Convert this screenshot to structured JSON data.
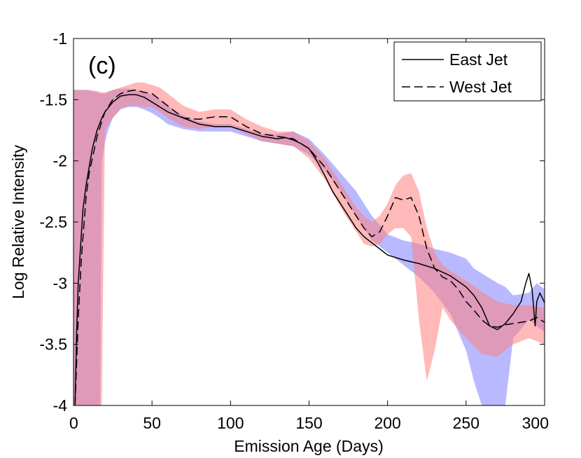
{
  "chart_data": {
    "type": "line",
    "title": "",
    "panel_label": "(c)",
    "xlabel": "Emission Age (Days)",
    "ylabel": "Log Relative Intensity",
    "xlim": [
      0,
      300
    ],
    "ylim": [
      -4,
      -1
    ],
    "grid": false,
    "legend_position": "top-right",
    "x_ticks": [
      0,
      50,
      100,
      150,
      200,
      250,
      300
    ],
    "x_tick_labels": [
      "0",
      "50",
      "100",
      "150",
      "200",
      "250",
      "300"
    ],
    "y_ticks": [
      -1,
      -1.5,
      -2,
      -2.5,
      -3,
      -3.5,
      -4
    ],
    "y_tick_labels": [
      "-1",
      "-1.5",
      "-2",
      "-2.5",
      "-3",
      "-3.5",
      "-4"
    ],
    "series": [
      {
        "name": "East Jet",
        "style": "solid",
        "color": "#000000",
        "x": [
          1,
          2,
          3,
          4,
          5,
          6,
          8,
          10,
          12,
          15,
          18,
          20,
          25,
          30,
          35,
          40,
          45,
          50,
          55,
          60,
          70,
          80,
          90,
          100,
          110,
          120,
          130,
          135,
          140,
          145,
          150,
          155,
          160,
          165,
          170,
          175,
          180,
          185,
          190,
          195,
          200,
          210,
          220,
          230,
          240,
          250,
          255,
          260,
          265,
          270,
          275,
          280,
          285,
          288,
          290,
          292,
          294,
          295,
          297,
          300
        ],
        "y": [
          -4.0,
          -3.4,
          -3.0,
          -2.8,
          -2.6,
          -2.4,
          -2.2,
          -2.05,
          -1.9,
          -1.75,
          -1.65,
          -1.6,
          -1.52,
          -1.47,
          -1.46,
          -1.46,
          -1.48,
          -1.52,
          -1.56,
          -1.6,
          -1.65,
          -1.7,
          -1.72,
          -1.72,
          -1.76,
          -1.8,
          -1.82,
          -1.81,
          -1.83,
          -1.86,
          -1.9,
          -2.0,
          -2.12,
          -2.25,
          -2.35,
          -2.45,
          -2.55,
          -2.62,
          -2.67,
          -2.72,
          -2.77,
          -2.81,
          -2.84,
          -2.88,
          -2.94,
          -3.03,
          -3.1,
          -3.2,
          -3.35,
          -3.38,
          -3.33,
          -3.25,
          -3.15,
          -3.0,
          -2.92,
          -3.05,
          -3.35,
          -3.15,
          -3.08,
          -3.16
        ]
      },
      {
        "name": "West Jet",
        "style": "dashed",
        "color": "#000000",
        "x": [
          1,
          3,
          5,
          8,
          10,
          15,
          20,
          25,
          30,
          35,
          40,
          45,
          50,
          55,
          60,
          70,
          80,
          90,
          100,
          110,
          120,
          130,
          140,
          150,
          160,
          170,
          180,
          185,
          190,
          195,
          200,
          205,
          210,
          215,
          220,
          225,
          230,
          235,
          240,
          245,
          250,
          255,
          260,
          265,
          270,
          275,
          280,
          290,
          295,
          300
        ],
        "y": [
          -4.0,
          -3.3,
          -2.8,
          -2.3,
          -2.1,
          -1.8,
          -1.6,
          -1.5,
          -1.45,
          -1.43,
          -1.42,
          -1.44,
          -1.45,
          -1.5,
          -1.55,
          -1.65,
          -1.66,
          -1.64,
          -1.64,
          -1.72,
          -1.78,
          -1.8,
          -1.82,
          -1.9,
          -2.05,
          -2.25,
          -2.45,
          -2.55,
          -2.62,
          -2.58,
          -2.45,
          -2.3,
          -2.32,
          -2.3,
          -2.45,
          -2.72,
          -2.88,
          -2.95,
          -2.98,
          -3.05,
          -3.15,
          -3.22,
          -3.3,
          -3.35,
          -3.36,
          -3.34,
          -3.33,
          -3.31,
          -3.28,
          -3.32
        ]
      }
    ],
    "bands": [
      {
        "name": "East Jet uncertainty",
        "color": "#8080ff",
        "x": [
          0,
          2,
          5,
          8,
          12,
          15,
          17,
          18,
          20,
          22,
          25,
          30,
          35,
          40,
          45,
          50,
          55,
          60,
          70,
          80,
          90,
          100,
          110,
          120,
          130,
          140,
          150,
          160,
          170,
          180,
          190,
          200,
          210,
          220,
          230,
          240,
          250,
          255,
          260,
          265,
          270,
          275,
          280,
          290,
          295,
          300
        ],
        "upper": [
          -1.42,
          -1.42,
          -1.42,
          -1.42,
          -1.43,
          -1.44,
          -1.45,
          -1.45,
          -1.45,
          -1.44,
          -1.42,
          -1.41,
          -1.41,
          -1.42,
          -1.44,
          -1.46,
          -1.5,
          -1.55,
          -1.63,
          -1.68,
          -1.7,
          -1.7,
          -1.74,
          -1.78,
          -1.78,
          -1.76,
          -1.82,
          -1.95,
          -2.1,
          -2.25,
          -2.45,
          -2.6,
          -2.65,
          -2.68,
          -2.72,
          -2.75,
          -2.8,
          -2.88,
          -2.92,
          -2.96,
          -3.0,
          -3.03,
          -3.1,
          -3.08,
          -3.0,
          -3.05
        ],
        "lower": [
          -4.0,
          -4.0,
          -4.0,
          -4.0,
          -4.0,
          -4.0,
          -4.0,
          -2.0,
          -1.85,
          -1.75,
          -1.65,
          -1.58,
          -1.56,
          -1.56,
          -1.58,
          -1.61,
          -1.65,
          -1.7,
          -1.74,
          -1.76,
          -1.76,
          -1.76,
          -1.8,
          -1.84,
          -1.86,
          -1.88,
          -1.95,
          -2.08,
          -2.25,
          -2.45,
          -2.65,
          -2.75,
          -2.85,
          -2.95,
          -3.08,
          -3.25,
          -3.55,
          -3.8,
          -4.0,
          -4.0,
          -4.0,
          -4.0,
          -3.45,
          -3.3,
          -3.35,
          -3.4
        ]
      },
      {
        "name": "West Jet uncertainty",
        "color": "#ff8080",
        "x": [
          0,
          5,
          10,
          15,
          18,
          20,
          25,
          30,
          35,
          40,
          45,
          50,
          55,
          60,
          70,
          80,
          90,
          100,
          110,
          120,
          130,
          140,
          150,
          160,
          170,
          180,
          185,
          190,
          195,
          200,
          205,
          210,
          215,
          220,
          225,
          230,
          235,
          240,
          250,
          260,
          270,
          280,
          290,
          300
        ],
        "upper": [
          -1.42,
          -1.42,
          -1.42,
          -1.43,
          -1.44,
          -1.44,
          -1.42,
          -1.4,
          -1.38,
          -1.36,
          -1.36,
          -1.38,
          -1.4,
          -1.45,
          -1.55,
          -1.6,
          -1.58,
          -1.58,
          -1.66,
          -1.72,
          -1.76,
          -1.76,
          -1.84,
          -1.98,
          -2.18,
          -2.38,
          -2.45,
          -2.5,
          -2.45,
          -2.35,
          -2.2,
          -2.12,
          -2.1,
          -2.25,
          -2.55,
          -2.75,
          -2.85,
          -2.9,
          -2.98,
          -3.07,
          -3.15,
          -3.18,
          -3.18,
          -3.2
        ],
        "lower": [
          -4.0,
          -4.0,
          -4.0,
          -4.0,
          -4.0,
          -1.75,
          -1.65,
          -1.57,
          -1.55,
          -1.55,
          -1.56,
          -1.56,
          -1.6,
          -1.65,
          -1.72,
          -1.74,
          -1.72,
          -1.72,
          -1.78,
          -1.84,
          -1.86,
          -1.88,
          -1.98,
          -2.15,
          -2.38,
          -2.58,
          -2.68,
          -2.7,
          -2.68,
          -2.6,
          -2.55,
          -2.55,
          -2.62,
          -3.3,
          -3.8,
          -3.55,
          -3.2,
          -3.3,
          -3.45,
          -3.58,
          -3.6,
          -3.5,
          -3.45,
          -3.5
        ]
      }
    ]
  }
}
